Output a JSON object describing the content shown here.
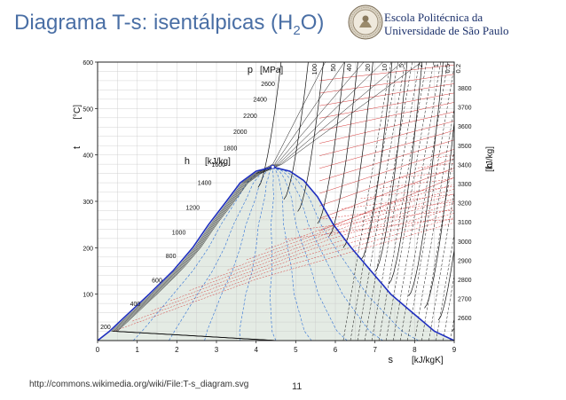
{
  "slide": {
    "title": "Diagrama T-s: isentálpicas (H",
    "title_sub": "2",
    "title_end": "O)",
    "institution_line1": "Escola Politécnica da",
    "institution_line2": "Universidade de São Paulo",
    "source_url": "http://commons.wikimedia.org/wiki/File:T-s_diagram.svg",
    "page_number": "11",
    "logo": "university-seal",
    "title_color": "#4a6fa5"
  },
  "chart_data": {
    "type": "T-s diagram",
    "x_label_symbol": "s",
    "x_label_unit": "[kJ/kgK]",
    "y_label_symbol": "t",
    "y_label_unit": "[°C]",
    "p_label_symbol": "p",
    "p_label_unit": "[MPa]",
    "h_label_symbol": "h",
    "h_label_unit": "[kJ/kg]",
    "h_right_symbol": "h",
    "h_right_unit": "[kJ/kg]",
    "xlim": [
      0,
      9
    ],
    "ylim": [
      0,
      600
    ],
    "x_ticks": [
      "0",
      "1",
      "2",
      "3",
      "4",
      "5",
      "6",
      "7",
      "8",
      "9"
    ],
    "y_ticks": [
      "100",
      "200",
      "300",
      "400",
      "500",
      "600"
    ],
    "pressure_labels": [
      "100",
      "50",
      "40",
      "20",
      "10",
      "5",
      "2",
      "1",
      "0.5",
      "0.2"
    ],
    "h_labels_left": [
      {
        "label": "200",
        "s": 0.2,
        "t": 25
      },
      {
        "label": "400",
        "s": 0.95,
        "t": 75
      },
      {
        "label": "600",
        "s": 1.5,
        "t": 125
      },
      {
        "label": "800",
        "s": 1.85,
        "t": 178
      },
      {
        "label": "1000",
        "s": 2.05,
        "t": 228
      },
      {
        "label": "1200",
        "s": 2.4,
        "t": 282
      },
      {
        "label": "1400",
        "s": 2.7,
        "t": 335
      },
      {
        "label": "1600",
        "s": 3.05,
        "t": 375
      },
      {
        "label": "1800",
        "s": 3.35,
        "t": 410
      },
      {
        "label": "2000",
        "s": 3.6,
        "t": 445
      },
      {
        "label": "2200",
        "s": 3.85,
        "t": 480
      },
      {
        "label": "2400",
        "s": 4.1,
        "t": 515
      },
      {
        "label": "2600",
        "s": 4.3,
        "t": 548
      }
    ],
    "h_labels_right": [
      "3800",
      "3700",
      "3600",
      "3500",
      "3400",
      "3300",
      "3200",
      "3100",
      "3000",
      "2900",
      "2800",
      "2700",
      "2600"
    ],
    "saturation_dome": [
      [
        0.0,
        0
      ],
      [
        0.3,
        20
      ],
      [
        0.8,
        60
      ],
      [
        1.3,
        100
      ],
      [
        1.9,
        150
      ],
      [
        2.4,
        200
      ],
      [
        2.8,
        250
      ],
      [
        3.25,
        300
      ],
      [
        3.6,
        340
      ],
      [
        4.0,
        365
      ],
      [
        4.42,
        374
      ],
      [
        4.85,
        365
      ],
      [
        5.2,
        345
      ],
      [
        5.55,
        310
      ],
      [
        5.95,
        250
      ],
      [
        6.4,
        200
      ],
      [
        6.9,
        150
      ],
      [
        7.4,
        100
      ],
      [
        7.95,
        60
      ],
      [
        8.5,
        20
      ],
      [
        9.0,
        0
      ]
    ],
    "critical_point": {
      "s": 4.42,
      "t": 374
    },
    "colors": {
      "dome": "#1f2fbf",
      "isobar": "#111111",
      "isenthalp_red": "#d53a3a",
      "quality_blue": "#2b6fd6",
      "two_phase_fill": "#e4ebe4"
    }
  }
}
